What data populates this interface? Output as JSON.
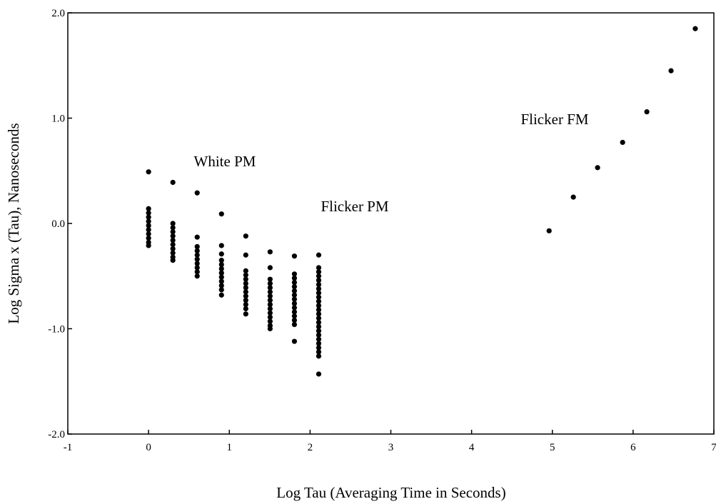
{
  "chart_data": {
    "type": "scatter",
    "x_label": "Log Tau (Averaging Time in Seconds)",
    "y_label": "Log Sigma x (Tau), Nanoseconds",
    "annotations": [
      "White PM",
      "Flicker PM",
      "Flicker FM"
    ],
    "color": "#000000",
    "xlim": [
      -1,
      7
    ],
    "xticks": [
      -1,
      0,
      1,
      2,
      3,
      4,
      5,
      6,
      7
    ],
    "ylim": [
      -2,
      2
    ],
    "yticks": [
      {
        "value": 2,
        "label": "2.0"
      },
      {
        "value": 1,
        "label": "1.0"
      },
      {
        "value": 0,
        "label": "0.0"
      },
      {
        "value": -1,
        "label": "-1.0"
      },
      {
        "value": -2,
        "label": "-2.0"
      }
    ],
    "x": [
      0,
      0,
      0,
      0,
      0,
      0,
      0,
      0,
      0,
      0,
      0,
      0.301,
      0.301,
      0.301,
      0.301,
      0.301,
      0.301,
      0.301,
      0.301,
      0.301,
      0.301,
      0.301,
      0.602,
      0.602,
      0.602,
      0.602,
      0.602,
      0.602,
      0.602,
      0.602,
      0.602,
      0.602,
      0.903,
      0.903,
      0.903,
      0.903,
      0.903,
      0.903,
      0.903,
      0.903,
      0.903,
      0.903,
      0.903,
      0.903,
      1.204,
      1.204,
      1.204,
      1.204,
      1.204,
      1.204,
      1.204,
      1.204,
      1.204,
      1.204,
      1.204,
      1.204,
      1.204,
      1.505,
      1.505,
      1.505,
      1.505,
      1.505,
      1.505,
      1.505,
      1.505,
      1.505,
      1.505,
      1.505,
      1.505,
      1.505,
      1.505,
      1.505,
      1.806,
      1.806,
      1.806,
      1.806,
      1.806,
      1.806,
      1.806,
      1.806,
      1.806,
      1.806,
      1.806,
      1.806,
      1.806,
      1.806,
      1.806,
      2.107,
      2.107,
      2.107,
      2.107,
      2.107,
      2.107,
      2.107,
      2.107,
      2.107,
      2.107,
      2.107,
      2.107,
      2.107,
      2.107,
      2.107,
      2.107,
      2.107,
      2.107,
      2.107,
      2.107,
      2.107,
      2.107,
      2.107,
      2.107,
      4.96,
      5.26,
      5.56,
      5.87,
      6.17,
      6.47,
      6.77
    ],
    "y": [
      0.49,
      0.14,
      0.1,
      0.06,
      0.02,
      -0.02,
      -0.06,
      -0.1,
      -0.14,
      -0.18,
      -0.21,
      0.39,
      0.0,
      -0.04,
      -0.08,
      -0.12,
      -0.16,
      -0.2,
      -0.24,
      -0.28,
      -0.32,
      -0.35,
      0.29,
      -0.13,
      -0.22,
      -0.26,
      -0.3,
      -0.34,
      -0.38,
      -0.42,
      -0.46,
      -0.5,
      0.09,
      -0.21,
      -0.29,
      -0.35,
      -0.39,
      -0.43,
      -0.47,
      -0.51,
      -0.55,
      -0.59,
      -0.63,
      -0.68,
      -0.12,
      -0.3,
      -0.45,
      -0.49,
      -0.53,
      -0.57,
      -0.61,
      -0.65,
      -0.69,
      -0.73,
      -0.77,
      -0.81,
      -0.86,
      -0.27,
      -0.42,
      -0.53,
      -0.57,
      -0.61,
      -0.65,
      -0.69,
      -0.73,
      -0.77,
      -0.81,
      -0.85,
      -0.89,
      -0.93,
      -0.97,
      -1.0,
      -0.31,
      -0.48,
      -0.52,
      -0.56,
      -0.6,
      -0.64,
      -0.68,
      -0.72,
      -0.76,
      -0.8,
      -0.84,
      -0.88,
      -0.92,
      -0.96,
      -1.12,
      -0.3,
      -0.42,
      -0.46,
      -0.5,
      -0.54,
      -0.58,
      -0.62,
      -0.66,
      -0.7,
      -0.74,
      -0.78,
      -0.82,
      -0.86,
      -0.9,
      -0.94,
      -0.98,
      -1.02,
      -1.06,
      -1.1,
      -1.14,
      -1.18,
      -1.22,
      -1.26,
      -1.43,
      -0.07,
      0.25,
      0.53,
      0.77,
      1.06,
      1.45,
      1.85
    ]
  }
}
